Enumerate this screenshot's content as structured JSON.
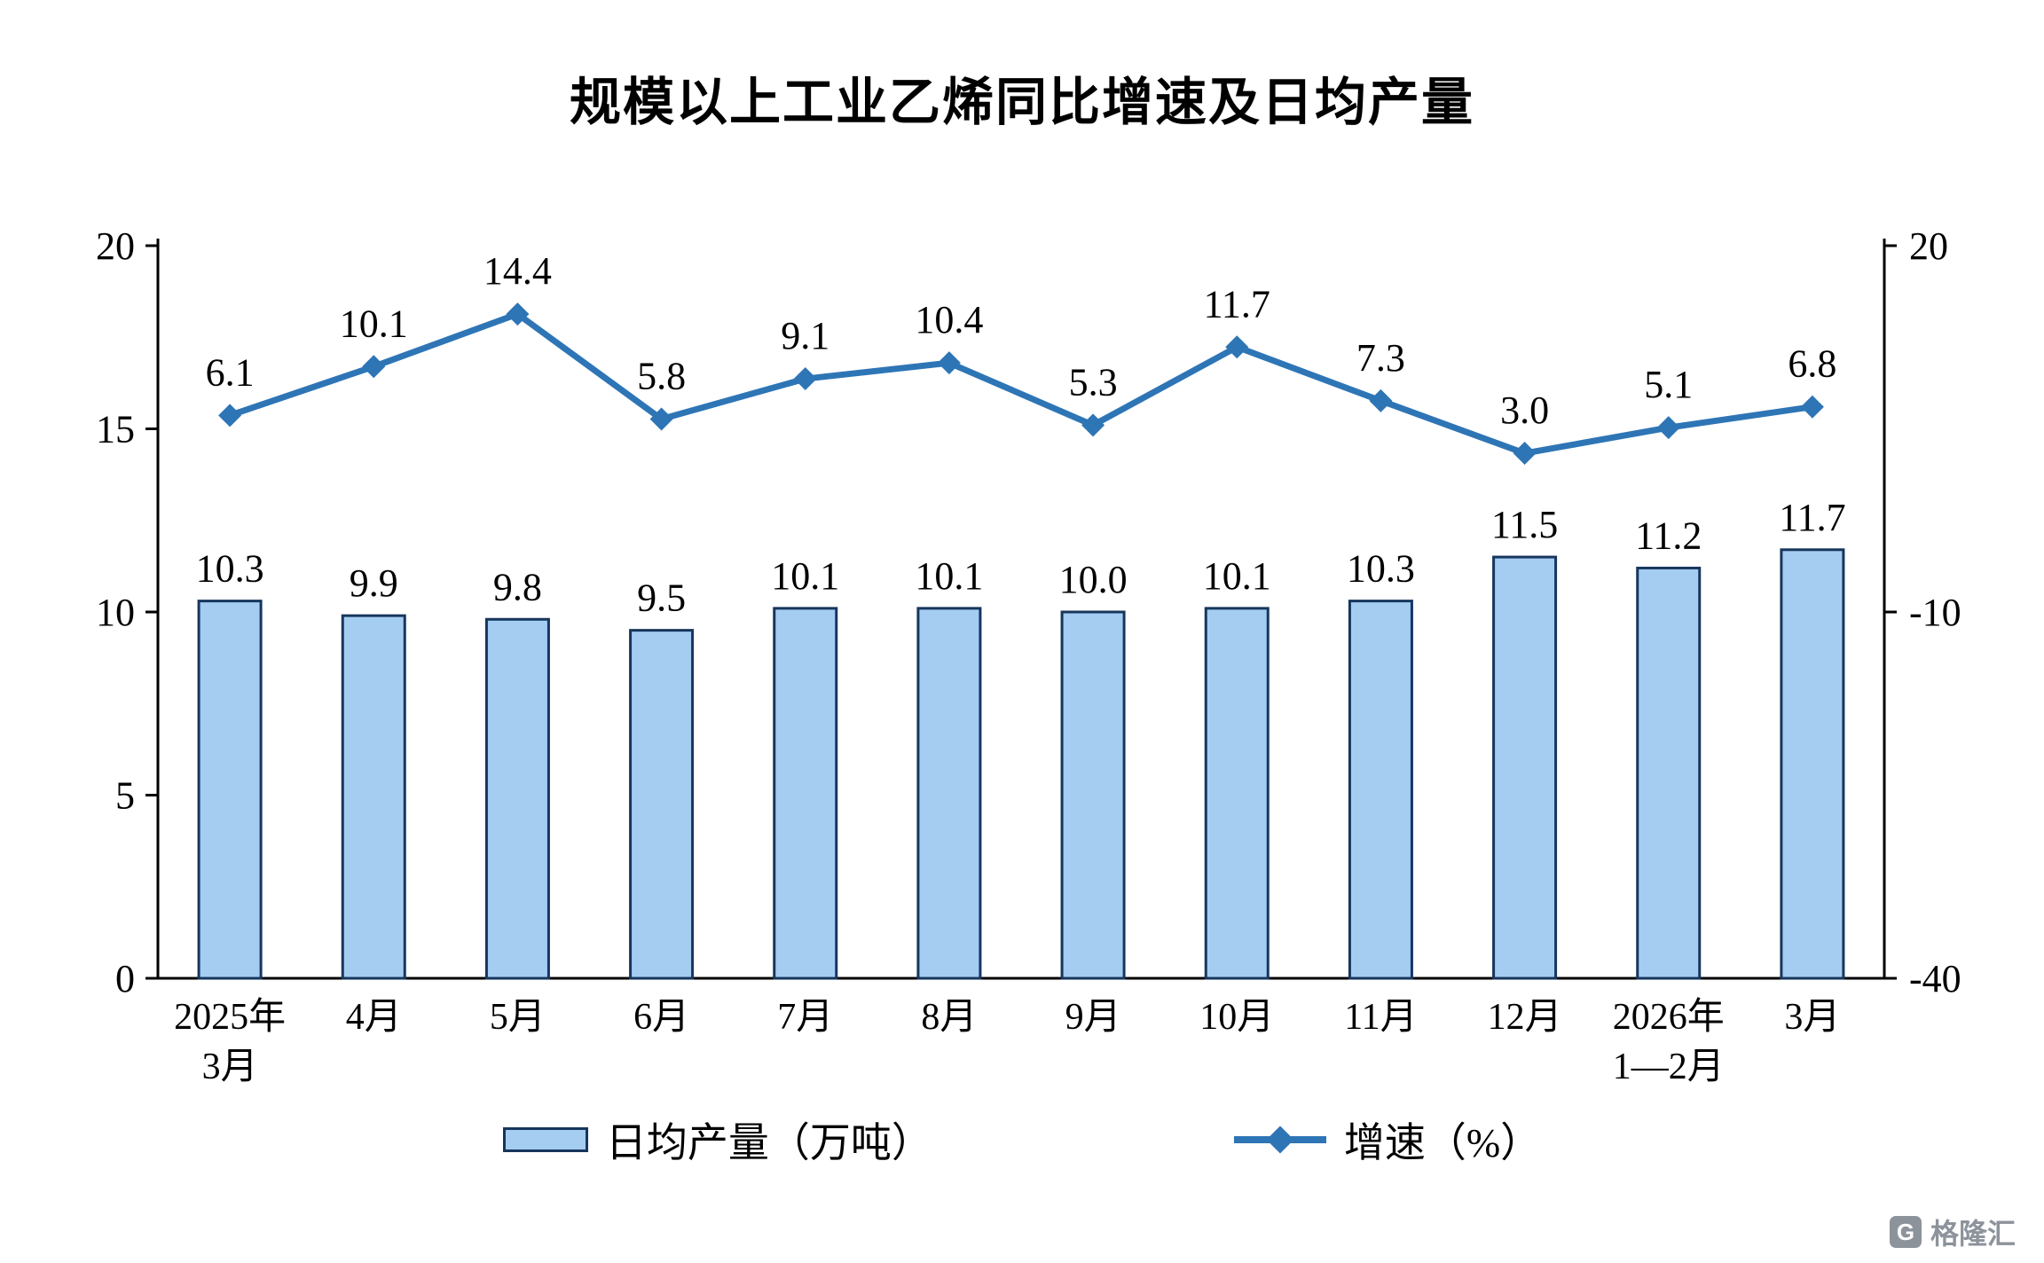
{
  "title": "规模以上工业乙烯同比增速及日均产量",
  "legend": {
    "bars": "日均产量（万吨）",
    "line": "增速（%）"
  },
  "watermark": "格隆汇",
  "chart_data": {
    "type": "bar",
    "subtype": "bar+line-dual-axis",
    "title": "规模以上工业乙烯同比增速及日均产量",
    "categories": [
      [
        "2025年",
        "3月"
      ],
      [
        "4月"
      ],
      [
        "5月"
      ],
      [
        "6月"
      ],
      [
        "7月"
      ],
      [
        "8月"
      ],
      [
        "9月"
      ],
      [
        "10月"
      ],
      [
        "11月"
      ],
      [
        "12月"
      ],
      [
        "2026年",
        "1—2月"
      ],
      [
        "3月"
      ]
    ],
    "series": [
      {
        "name": "日均产量（万吨）",
        "type": "bar",
        "axis": "left",
        "values": [
          10.3,
          9.9,
          9.8,
          9.5,
          10.1,
          10.1,
          10.0,
          10.1,
          10.3,
          11.5,
          11.2,
          11.7
        ]
      },
      {
        "name": "增速（%）",
        "type": "line",
        "axis": "right",
        "values": [
          6.1,
          10.1,
          14.4,
          5.8,
          9.1,
          10.4,
          5.3,
          11.7,
          7.3,
          3.0,
          5.1,
          6.8
        ]
      }
    ],
    "left_axis": {
      "min": 0,
      "max": 20,
      "ticks": [
        0,
        5,
        10,
        15,
        20
      ]
    },
    "right_axis": {
      "min": -40,
      "max": 20,
      "ticks": [
        20,
        -10,
        -40
      ]
    },
    "grid": "off",
    "legend_position": "bottom",
    "colors": {
      "bar_fill": "#A5CDF2",
      "bar_border": "#17365D",
      "line": "#2E75B6",
      "axis": "#000000",
      "text": "#000000"
    }
  }
}
